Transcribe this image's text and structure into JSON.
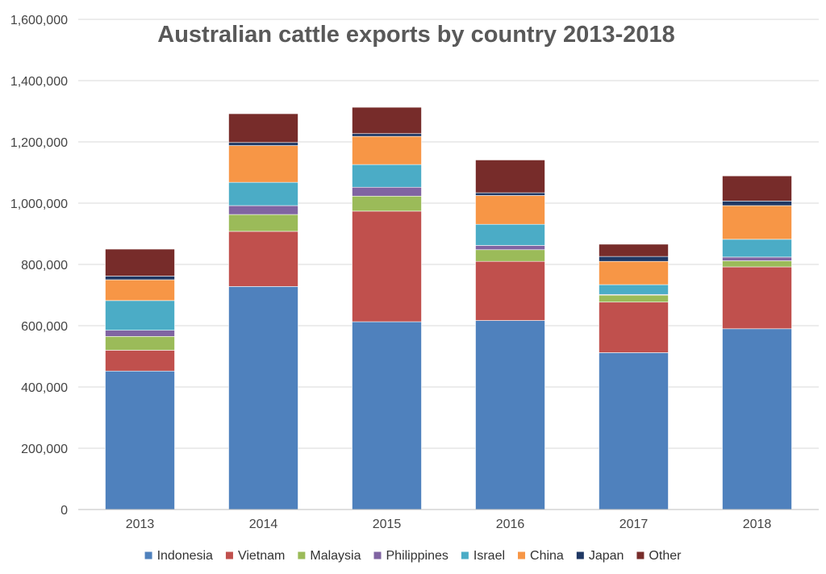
{
  "chart_data": {
    "type": "bar",
    "stacked": true,
    "title": "Australian cattle exports by country 2013-2018",
    "xlabel": "",
    "ylabel": "",
    "ylim": [
      0,
      1600000
    ],
    "yticks": [
      "0",
      "200,000",
      "400,000",
      "600,000",
      "800,000",
      "1,000,000",
      "1,200,000",
      "1,400,000",
      "1,600,000"
    ],
    "ytick_values": [
      0,
      200000,
      400000,
      600000,
      800000,
      1000000,
      1200000,
      1400000,
      1600000
    ],
    "grid": true,
    "legend_position": "bottom",
    "categories": [
      "2013",
      "2014",
      "2015",
      "2016",
      "2017",
      "2018"
    ],
    "series": [
      {
        "name": "Indonesia",
        "color": "#4F81BD",
        "values": [
          452000,
          728000,
          613000,
          617000,
          512000,
          590000
        ]
      },
      {
        "name": "Vietnam",
        "color": "#C0504D",
        "values": [
          68000,
          180000,
          361000,
          193000,
          165000,
          202000
        ]
      },
      {
        "name": "Malaysia",
        "color": "#9BBB59",
        "values": [
          45000,
          55000,
          49000,
          38000,
          23000,
          20000
        ]
      },
      {
        "name": "Philippines",
        "color": "#8064A2",
        "values": [
          20000,
          29000,
          29000,
          14000,
          2000,
          12000
        ]
      },
      {
        "name": "Israel",
        "color": "#4BACC6",
        "values": [
          97000,
          76000,
          74000,
          69000,
          32000,
          58000
        ]
      },
      {
        "name": "China",
        "color": "#F79646",
        "values": [
          68000,
          120000,
          92000,
          94000,
          76000,
          110000
        ]
      },
      {
        "name": "Japan",
        "color": "#1F3864",
        "values": [
          12000,
          10000,
          9000,
          9000,
          16000,
          15000
        ]
      },
      {
        "name": "Other",
        "color": "#772C2A",
        "values": [
          88000,
          94000,
          86000,
          107000,
          40000,
          82000
        ]
      }
    ]
  }
}
